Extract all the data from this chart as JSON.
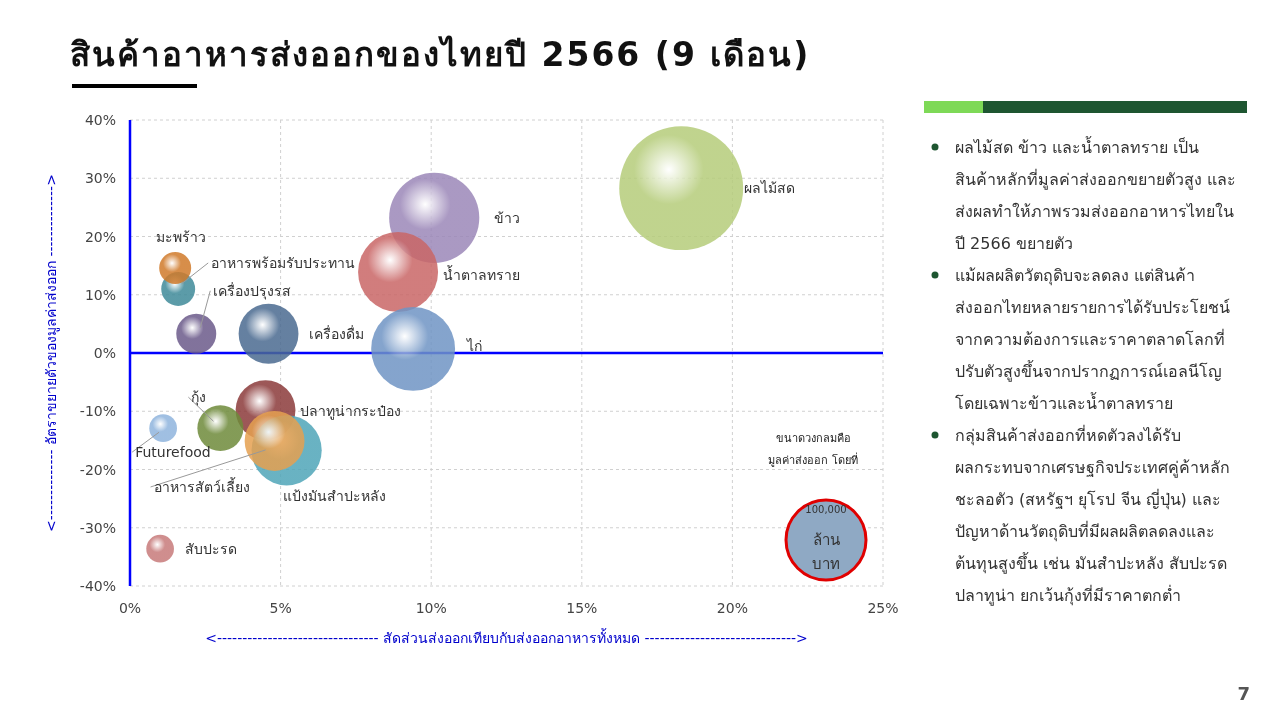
{
  "chart_data": {
    "type": "bubble",
    "title": "สินค้าอาหารส่งออกของไทยปี 2566 (9 เดือน)",
    "xlabel": "<-------------------------------- สัดส่วนส่งออกเทียบกับส่งออกอาหารทั้งหมด ------------------------------>",
    "ylabel": "<-------------- อัตราขยายตัวของมูลค่าส่งออก -------------->",
    "xlim": [
      0,
      25
    ],
    "ylim": [
      -40,
      40
    ],
    "xticks": [
      {
        "value": 0,
        "label": "0%"
      },
      {
        "value": 5,
        "label": "5%"
      },
      {
        "value": 10,
        "label": "10%"
      },
      {
        "value": 15,
        "label": "15%"
      },
      {
        "value": 20,
        "label": "20%"
      },
      {
        "value": 25,
        "label": "25%"
      }
    ],
    "yticks": [
      {
        "value": -40,
        "label": "-40%"
      },
      {
        "value": -30,
        "label": "-30%"
      },
      {
        "value": -20,
        "label": "-20%"
      },
      {
        "value": -10,
        "label": "-10%"
      },
      {
        "value": 0,
        "label": "0%"
      },
      {
        "value": 10,
        "label": "10%"
      },
      {
        "value": 20,
        "label": "20%"
      },
      {
        "value": 30,
        "label": "30%"
      },
      {
        "value": 40,
        "label": "40%"
      }
    ],
    "grid": true,
    "legend_title": "ขนาดวงกลมคือ\nมูลค่าส่งออก โดยที่",
    "size_legend": [
      {
        "value": 100000,
        "label": "100,000"
      }
    ],
    "ref_lines": [
      {
        "axis": "y",
        "value": 0,
        "color": "#0000ff"
      }
    ],
    "annotations": [
      "ผลไม้สด ข้าว และน้ำตาลทราย เป็น\nสินค้าหลักที่มูลค่าส่งออกขยายตัวสูง และ\nส่งผลทำให้ภาพรวมส่งออกอาหารไทยใน\nปี 2566 ขยายตัว",
      "แม้ผลผลิตวัตถุดิบจะลดลง แต่สินค้า\nส่งออกไทยหลายรายการได้รับประโยชน์\nจากความต้องการและราคาตลาดโลกที่\nปรับตัวสูงขึ้นจากปรากฏการณ์เอลนีโญ\nโดยเฉพาะข้าวและน้ำตาลทราย",
      "กลุ่มสินค้าส่งออกที่หดตัวลงได้รับ\nผลกระทบจากเศรษฐกิจประเทศคู่ค้าหลัก\nชะลอตัว (สหรัฐฯ ยุโรป จีน ญี่ปุ่น) และ\nปัญหาด้านวัตถุดิบที่มีผลผลิตลดลงและ\nต้นทุนสูงขึ้น เช่น มันสำปะหลัง สับปะรด\nปลาทูน่า ยกเว้นกุ้งที่มีราคาตกต่ำ",
      "ล้าน\nบาท",
      "7"
    ],
    "series": [
      {
        "name": "ผลไม้สด",
        "color": "#b5cc7a",
        "x": [
          18.3
        ],
        "values": [
          28.3
        ],
        "sizes": [
          240000
        ]
      },
      {
        "name": "ข้าว",
        "color": "#9b87b8",
        "x": [
          10.1
        ],
        "values": [
          23.2
        ],
        "sizes": [
          127000
        ]
      },
      {
        "name": "น้ำตาลทราย",
        "color": "#c96666",
        "x": [
          8.9
        ],
        "values": [
          13.9
        ],
        "sizes": [
          100000
        ]
      },
      {
        "name": "ไก่",
        "color": "#6f94c4",
        "x": [
          9.4
        ],
        "values": [
          0.7
        ],
        "sizes": [
          110000
        ]
      },
      {
        "name": "เครื่องดื่ม",
        "color": "#4a6a90",
        "x": [
          4.6
        ],
        "values": [
          3.3
        ],
        "sizes": [
          56000
        ]
      },
      {
        "name": "เครื่องปรุงรส",
        "color": "#6b5a8a",
        "x": [
          2.2
        ],
        "values": [
          3.3
        ],
        "sizes": [
          25000
        ]
      },
      {
        "name": "อาหารพร้อมรับประทาน",
        "color": "#3f8a99",
        "x": [
          1.6
        ],
        "values": [
          11.0
        ],
        "sizes": [
          18000
        ]
      },
      {
        "name": "มะพร้าว",
        "color": "#d07a2a",
        "x": [
          1.5
        ],
        "values": [
          14.6
        ],
        "sizes": [
          16000
        ]
      },
      {
        "name": "ปลาทูน่ากระป๋อง",
        "color": "#8b3a3a",
        "x": [
          4.5
        ],
        "values": [
          -9.8
        ],
        "sizes": [
          56000
        ]
      },
      {
        "name": "แป้งมันสำปะหลัง",
        "color": "#4fa5b8",
        "x": [
          5.2
        ],
        "values": [
          -16.7
        ],
        "sizes": [
          77000
        ]
      },
      {
        "name": "อาหารสัตว์เลี้ยง",
        "color": "#e5a050",
        "x": [
          4.8
        ],
        "values": [
          -15.1
        ],
        "sizes": [
          56000
        ]
      },
      {
        "name": "กุ้ง",
        "color": "#6e8a3a",
        "x": [
          3.0
        ],
        "values": [
          -12.9
        ],
        "sizes": [
          33000
        ]
      },
      {
        "name": "Futurefood",
        "color": "#8fb4dd",
        "x": [
          1.1
        ],
        "values": [
          -12.9
        ],
        "sizes": [
          12000
        ]
      },
      {
        "name": "สับปะรด",
        "color": "#c77a7a",
        "x": [
          1.0
        ],
        "values": [
          -33.6
        ],
        "sizes": [
          12000
        ]
      }
    ]
  }
}
